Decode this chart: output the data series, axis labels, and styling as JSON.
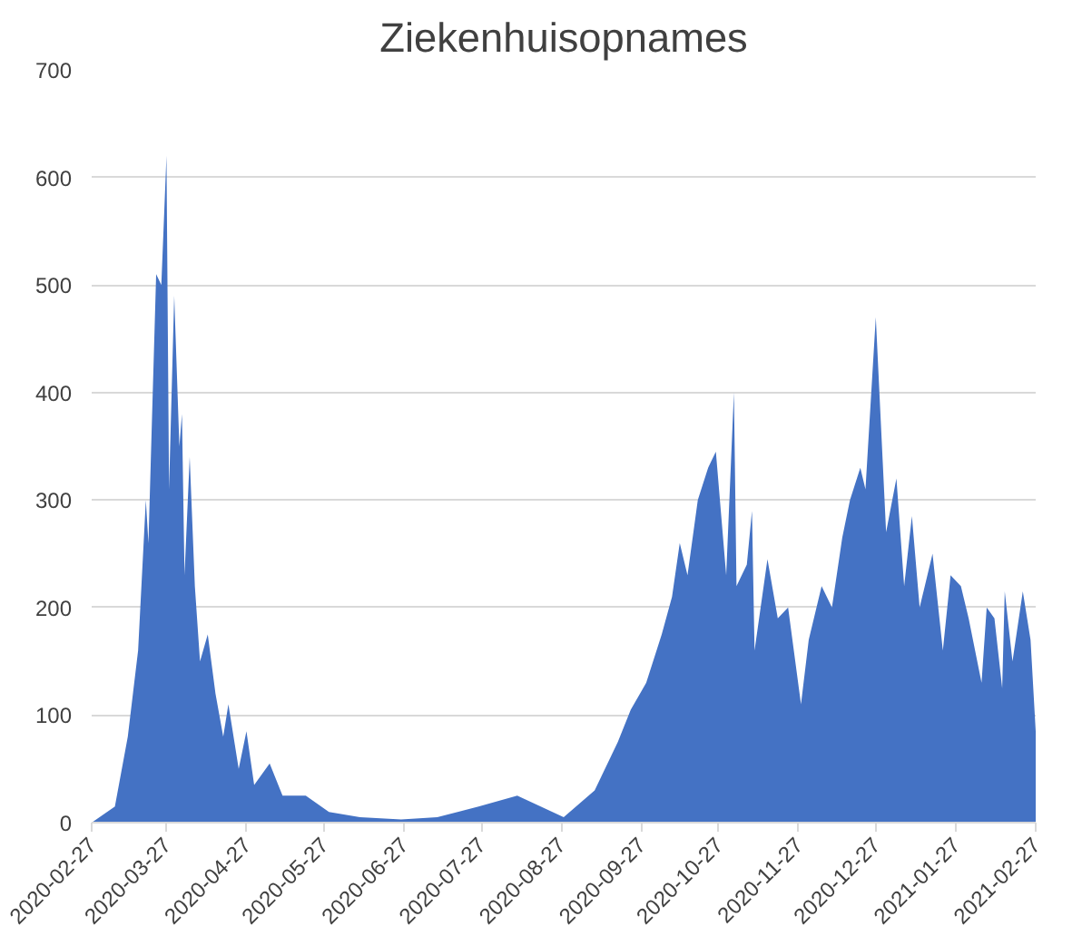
{
  "chart_data": {
    "type": "area",
    "title": "Ziekenhuisopnames",
    "x": [
      "2020-02-27",
      "2020-03-07",
      "2020-03-12",
      "2020-03-16",
      "2020-03-19",
      "2020-03-20",
      "2020-03-23",
      "2020-03-25",
      "2020-03-27",
      "2020-03-28",
      "2020-03-30",
      "2020-04-01",
      "2020-04-02",
      "2020-04-03",
      "2020-04-05",
      "2020-04-07",
      "2020-04-09",
      "2020-04-12",
      "2020-04-15",
      "2020-04-18",
      "2020-04-20",
      "2020-04-24",
      "2020-04-27",
      "2020-04-30",
      "2020-05-06",
      "2020-05-11",
      "2020-05-20",
      "2020-05-29",
      "2020-06-10",
      "2020-06-26",
      "2020-07-10",
      "2020-07-26",
      "2020-08-10",
      "2020-08-28",
      "2020-09-09",
      "2020-09-18",
      "2020-09-23",
      "2020-09-29",
      "2020-10-05",
      "2020-10-09",
      "2020-10-12",
      "2020-10-15",
      "2020-10-19",
      "2020-10-23",
      "2020-10-26",
      "2020-10-30",
      "2020-11-02",
      "2020-11-03",
      "2020-11-07",
      "2020-11-09",
      "2020-11-10",
      "2020-11-15",
      "2020-11-19",
      "2020-11-23",
      "2020-11-28",
      "2020-12-01",
      "2020-12-06",
      "2020-12-10",
      "2020-12-14",
      "2020-12-17",
      "2020-12-21",
      "2020-12-23",
      "2020-12-27",
      "2020-12-31",
      "2021-01-04",
      "2021-01-07",
      "2021-01-10",
      "2021-01-13",
      "2021-01-18",
      "2021-01-22",
      "2021-01-25",
      "2021-01-29",
      "2021-02-01",
      "2021-02-06",
      "2021-02-08",
      "2021-02-11",
      "2021-02-14",
      "2021-02-15",
      "2021-02-18",
      "2021-02-22",
      "2021-02-25",
      "2021-02-27"
    ],
    "series": [
      {
        "color": "#4472c4",
        "values": [
          0,
          15,
          80,
          160,
          300,
          260,
          510,
          500,
          620,
          310,
          490,
          350,
          380,
          230,
          340,
          220,
          150,
          175,
          120,
          80,
          110,
          50,
          85,
          35,
          55,
          25,
          25,
          10,
          5,
          3,
          5,
          15,
          25,
          5,
          30,
          75,
          105,
          130,
          175,
          210,
          260,
          230,
          300,
          330,
          345,
          230,
          400,
          220,
          240,
          290,
          160,
          245,
          190,
          200,
          110,
          170,
          220,
          200,
          265,
          300,
          330,
          310,
          470,
          270,
          320,
          220,
          285,
          200,
          250,
          160,
          230,
          220,
          190,
          130,
          200,
          190,
          125,
          215,
          150,
          215,
          170,
          85
        ]
      }
    ],
    "xlim": [
      "2020-02-27",
      "2021-02-27"
    ],
    "xticks": [
      "2020-02-27",
      "2020-03-27",
      "2020-04-27",
      "2020-05-27",
      "2020-06-27",
      "2020-07-27",
      "2020-08-27",
      "2020-09-27",
      "2020-10-27",
      "2020-11-27",
      "2020-12-27",
      "2021-01-27",
      "2021-02-27"
    ],
    "ylim": [
      0,
      700
    ],
    "yticks": [
      0,
      100,
      200,
      300,
      400,
      500,
      600,
      700
    ],
    "grid": "y"
  }
}
